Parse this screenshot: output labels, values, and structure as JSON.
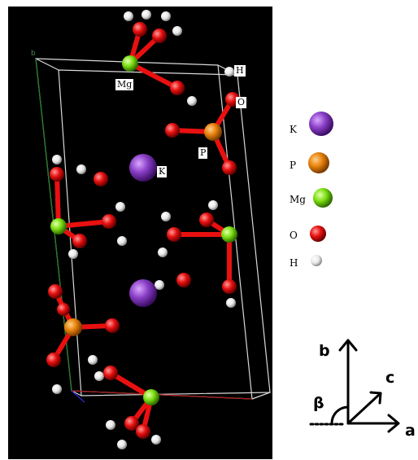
{
  "atom_labels": {
    "mg": "Mg",
    "h": "H",
    "o": "O",
    "p": "P",
    "k": "K"
  },
  "legend": [
    {
      "symbol": "K",
      "color": "#8a3fc7"
    },
    {
      "symbol": "P",
      "color": "#e8820c"
    },
    {
      "symbol": "Mg",
      "color": "#7be012"
    },
    {
      "symbol": "O",
      "color": "#e81010"
    },
    {
      "symbol": "H",
      "color": "#f2f2f2"
    }
  ],
  "axes": {
    "b": "b",
    "c": "c",
    "a": "a",
    "beta": "β"
  },
  "colors": {
    "background": "#000000",
    "cell_edge": "#d9d9d9",
    "bond": "#e81010"
  }
}
